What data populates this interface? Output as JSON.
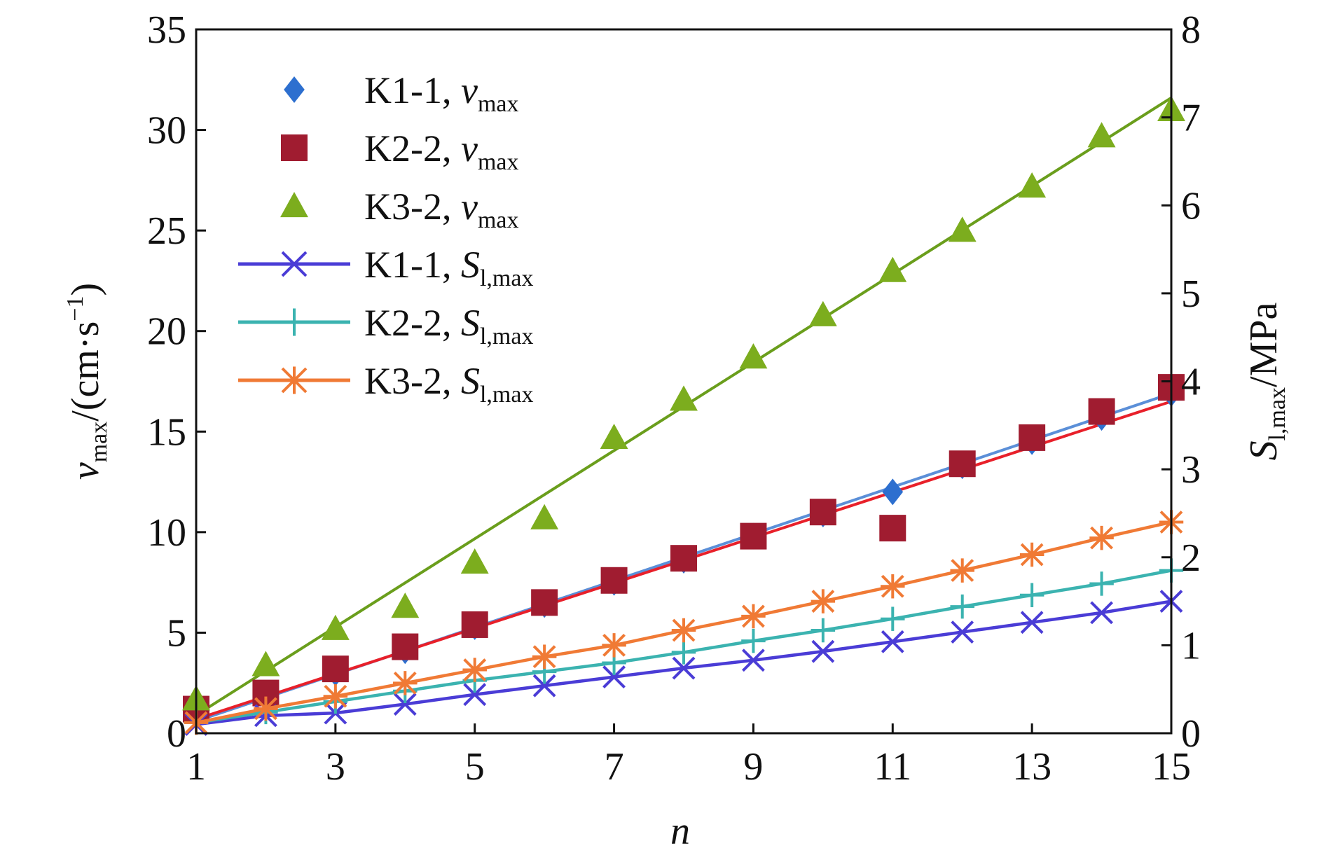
{
  "chart_data": {
    "type": "scatter",
    "title": "",
    "xlabel": "n",
    "ylabel_left": {
      "var": "v",
      "sub": "max",
      "unit": "/(cm·s",
      "sup": "−1",
      "close": ")"
    },
    "ylabel_right": {
      "var": "S",
      "sub": "l,max",
      "unit": "/MPa"
    },
    "xlim": [
      1,
      15
    ],
    "ylim_left": [
      0,
      35
    ],
    "ylim_right": [
      0,
      8
    ],
    "x_ticks": [
      1,
      3,
      5,
      7,
      9,
      11,
      13,
      15
    ],
    "y_ticks_left": [
      0,
      5,
      10,
      15,
      20,
      25,
      30,
      35
    ],
    "y_ticks_right": [
      0,
      1,
      2,
      3,
      4,
      5,
      6,
      7,
      8
    ],
    "grid": false,
    "legend_position": "top-left",
    "series": [
      {
        "name": "K1-1",
        "quantity": "v",
        "sub": "max",
        "axis": "left",
        "kind": "marker",
        "marker": "diamond",
        "color": "#2d6fcf",
        "x": [
          1,
          2,
          3,
          4,
          5,
          6,
          7,
          8,
          9,
          10,
          11,
          12,
          13,
          14,
          15
        ],
        "y": [
          0.9,
          1.9,
          3.0,
          4.1,
          5.3,
          6.4,
          7.5,
          8.6,
          9.8,
          10.9,
          12.0,
          13.3,
          14.5,
          15.7,
          16.9
        ]
      },
      {
        "name": "K2-2",
        "quantity": "v",
        "sub": "max",
        "axis": "left",
        "kind": "marker",
        "marker": "square",
        "color": "#a01c30",
        "x": [
          1,
          2,
          3,
          4,
          5,
          6,
          7,
          8,
          9,
          10,
          11,
          12,
          13,
          14,
          15
        ],
        "y": [
          1.2,
          2.0,
          3.2,
          4.3,
          5.4,
          6.5,
          7.6,
          8.7,
          9.8,
          11.0,
          10.2,
          13.4,
          14.7,
          16.0,
          17.2
        ]
      },
      {
        "name": "K3-2",
        "quantity": "v",
        "sub": "max",
        "axis": "left",
        "kind": "marker",
        "marker": "triangle",
        "color": "#7cad1e",
        "x": [
          1,
          2,
          3,
          4,
          5,
          6,
          7,
          8,
          9,
          10,
          11,
          12,
          13,
          14,
          15
        ],
        "y": [
          1.7,
          3.4,
          5.2,
          6.3,
          8.5,
          10.7,
          14.7,
          16.6,
          18.7,
          20.8,
          23.0,
          25.0,
          27.2,
          29.7,
          31.0
        ]
      },
      {
        "name": "K1-1",
        "quantity": "S",
        "sub": "l,max",
        "axis": "right",
        "kind": "line",
        "marker": "x",
        "color": "#4a3cd6",
        "x": [
          1,
          2,
          3,
          4,
          5,
          6,
          7,
          8,
          9,
          10,
          11,
          12,
          13,
          14,
          15
        ],
        "y": [
          0.1,
          0.2,
          0.23,
          0.33,
          0.44,
          0.54,
          0.64,
          0.74,
          0.83,
          0.93,
          1.04,
          1.15,
          1.26,
          1.37,
          1.5
        ]
      },
      {
        "name": "K2-2",
        "quantity": "S",
        "sub": "l,max",
        "axis": "right",
        "kind": "line",
        "marker": "plus",
        "color": "#3bb3b0",
        "x": [
          1,
          2,
          3,
          4,
          5,
          6,
          7,
          8,
          9,
          10,
          11,
          12,
          13,
          14,
          15
        ],
        "y": [
          0.12,
          0.24,
          0.36,
          0.48,
          0.6,
          0.7,
          0.8,
          0.92,
          1.05,
          1.17,
          1.3,
          1.44,
          1.57,
          1.7,
          1.85
        ]
      },
      {
        "name": "K3-2",
        "quantity": "S",
        "sub": "l,max",
        "axis": "right",
        "kind": "line",
        "marker": "asterisk",
        "color": "#f07a35",
        "x": [
          1,
          2,
          3,
          4,
          5,
          6,
          7,
          8,
          9,
          10,
          11,
          12,
          13,
          14,
          15
        ],
        "y": [
          0.12,
          0.28,
          0.42,
          0.57,
          0.72,
          0.87,
          1.0,
          1.17,
          1.33,
          1.5,
          1.67,
          1.85,
          2.03,
          2.22,
          2.4
        ]
      }
    ],
    "fit_lines": [
      {
        "label": "K1-1 v_max fit",
        "axis": "left",
        "color": "#5b8fd8",
        "from": [
          1,
          0.6
        ],
        "to": [
          15,
          16.9
        ]
      },
      {
        "label": "K2-2 v_max fit",
        "axis": "left",
        "color": "#e8202a",
        "from": [
          1,
          0.7
        ],
        "to": [
          15,
          16.5
        ]
      },
      {
        "label": "K3-2 v_max fit",
        "axis": "left",
        "color": "#6a9e1c",
        "from": [
          1,
          0.9
        ],
        "to": [
          15,
          31.6
        ]
      }
    ]
  }
}
